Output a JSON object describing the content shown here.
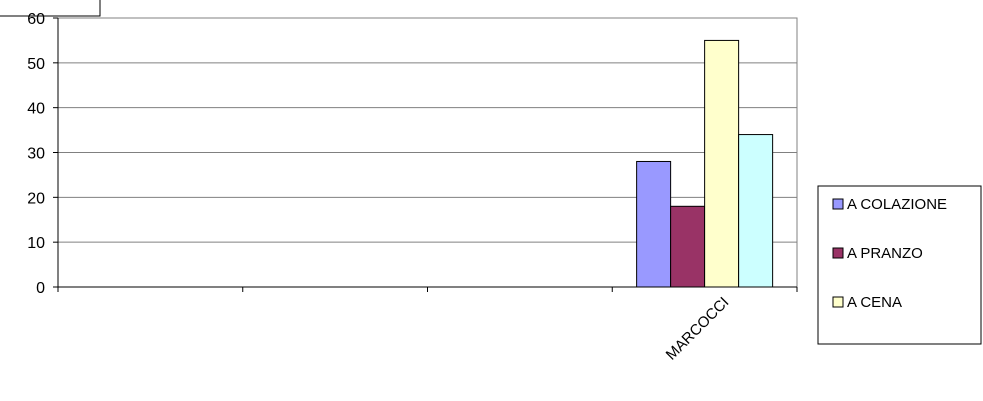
{
  "chart_data": {
    "type": "bar",
    "title": "",
    "xlabel": "",
    "ylabel": "",
    "ylim": [
      0,
      60
    ],
    "yticks": [
      0,
      10,
      20,
      30,
      40,
      50,
      60
    ],
    "grid": true,
    "legend_position": "right",
    "categories": [
      "",
      "",
      "",
      "MARCOCCI"
    ],
    "series": [
      {
        "name": "A COLAZIONE",
        "color": "#9999ff",
        "values": [
          0,
          0,
          0,
          28
        ]
      },
      {
        "name": "A PRANZO",
        "color": "#993366",
        "values": [
          0,
          0,
          0,
          18
        ]
      },
      {
        "name": "A CENA",
        "color": "#ffffcc",
        "values": [
          0,
          0,
          0,
          55
        ]
      },
      {
        "name": "",
        "color": "#ccffff",
        "values": [
          0,
          0,
          0,
          34
        ]
      }
    ]
  }
}
